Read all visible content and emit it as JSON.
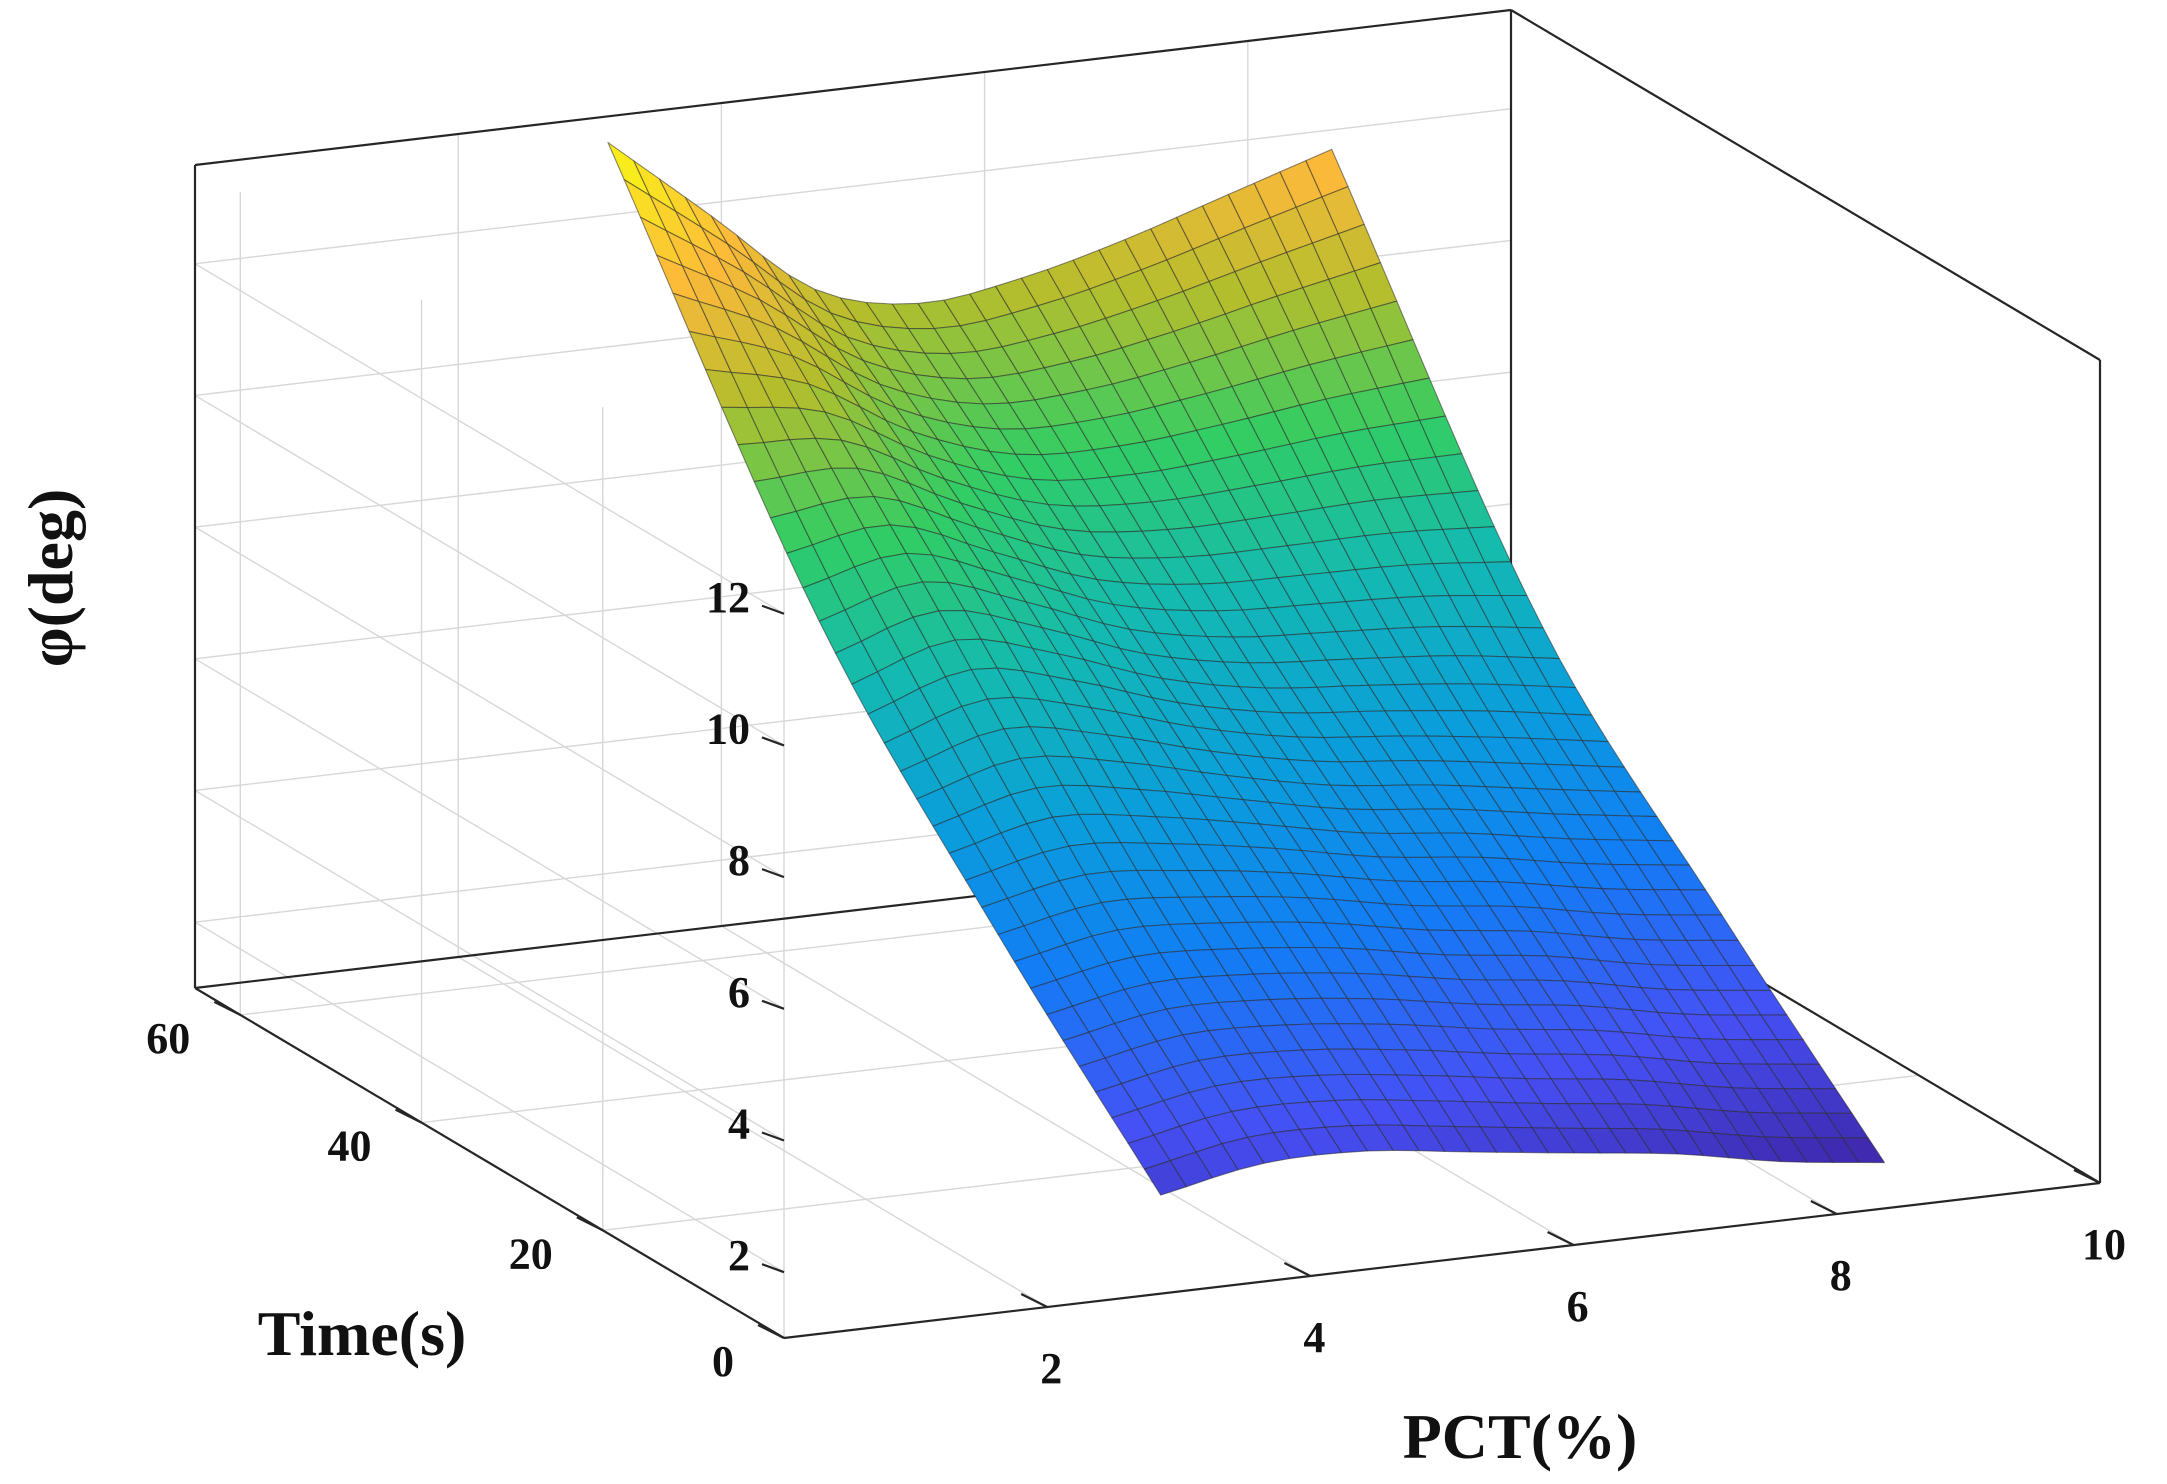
{
  "chart_data": {
    "type": "surface",
    "title": "",
    "xlabel": "PCT(%)",
    "ylabel": "Time(s)",
    "zlabel": "φ(deg)",
    "xlim": [
      0,
      10
    ],
    "ylim": [
      0,
      65
    ],
    "zlim": [
      1,
      13.5
    ],
    "x_ticks": [
      2,
      4,
      6,
      8,
      10
    ],
    "y_ticks": [
      0,
      20,
      40,
      60
    ],
    "z_ticks": [
      2,
      4,
      6,
      8,
      10,
      12
    ],
    "x_range": [
      3,
      8.5
    ],
    "y_range": [
      2,
      63
    ],
    "grid": true,
    "colormap": "parula",
    "surface_rows": [
      {
        "time": 2,
        "phi": [
          2.3,
          2.6,
          2.6,
          2.4,
          2.2,
          2.0,
          1.7,
          1.5
        ]
      },
      {
        "time": 20,
        "phi": [
          4.8,
          5.1,
          5.0,
          4.8,
          4.5,
          4.3,
          4.0,
          3.8
        ]
      },
      {
        "time": 40,
        "phi": [
          8.0,
          8.4,
          7.9,
          7.3,
          7.0,
          6.9,
          6.8,
          6.6
        ]
      },
      {
        "time": 63,
        "phi": [
          13.3,
          12.0,
          10.7,
          10.3,
          10.5,
          10.9,
          11.4,
          11.9
        ]
      }
    ]
  }
}
